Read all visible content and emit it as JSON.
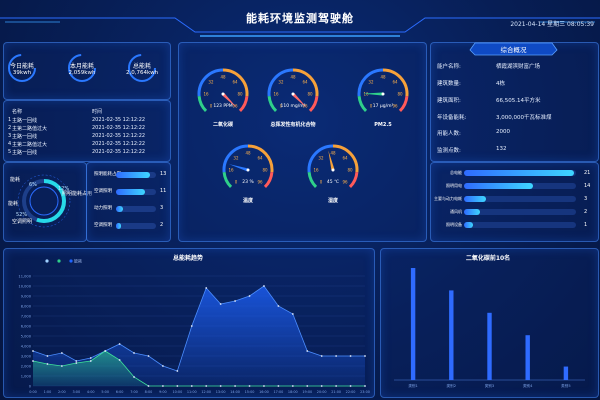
{
  "header": {
    "title": "能耗环境监测驾驶舱",
    "datetime": "2021-04-14 星期三 08:05:39"
  },
  "kpis": [
    {
      "label": "今日能耗",
      "value": "39kwh"
    },
    {
      "label": "本月能耗",
      "value": "2,059kwh"
    },
    {
      "label": "总能耗",
      "value": "2,0,764kwh"
    }
  ],
  "alarm_table": {
    "headers": [
      "名称",
      "时间"
    ],
    "rows": [
      {
        "name": "主路一回线",
        "time": "2021-02-35 12:12:22"
      },
      {
        "name": "主第二路值过大",
        "time": "2021-02-35 12:12:22"
      },
      {
        "name": "主路一回线",
        "time": "2021-02-35 12:12:22"
      },
      {
        "name": "主第二路值过大",
        "time": "2021-02-35 12:12:22"
      },
      {
        "name": "主路一回线",
        "time": "2021-02-35 12:12:22"
      }
    ]
  },
  "donut": {
    "labels": [
      "能耗",
      "照明能耗占用",
      "空调照明",
      "动力照明",
      "能耗"
    ],
    "percents": [
      "6%",
      "12%",
      "52%"
    ]
  },
  "bar_list": {
    "items": [
      {
        "label": "照明能耗占用",
        "value": 13,
        "frac": 0.85
      },
      {
        "label": "空调照明",
        "value": 11,
        "frac": 0.72
      },
      {
        "label": "动力照明",
        "value": 3,
        "frac": 0.18
      },
      {
        "label": "空调照明",
        "value": 2,
        "frac": 0.12
      }
    ]
  },
  "gauges": [
    {
      "label": "二氧化碳",
      "value_text": "123 PPM",
      "value": 123,
      "max": 100,
      "ticks": [
        "0",
        "16",
        "32",
        "48",
        "64",
        "80",
        "96"
      ]
    },
    {
      "label": "总挥发性有机化合物",
      "value_text": "110 mg/m³",
      "value": 110,
      "max": 100,
      "ticks": [
        "0",
        "16",
        "32",
        "48",
        "64",
        "80",
        "96"
      ]
    },
    {
      "label": "PM2.5",
      "value_text": "17 μg/m³",
      "value": 17,
      "max": 100,
      "ticks": [
        "0",
        "16",
        "32",
        "48",
        "64",
        "80",
        "96"
      ]
    },
    {
      "label": "温度",
      "value_text": "23 %",
      "value": 23,
      "max": 100,
      "ticks": [
        "0",
        "16",
        "32",
        "48",
        "64",
        "80",
        "96"
      ]
    },
    {
      "label": "湿度",
      "value_text": "45 ℃",
      "value": 45,
      "max": 100,
      "ticks": [
        "0",
        "16",
        "32",
        "48",
        "64",
        "80",
        "96"
      ]
    }
  ],
  "overview": {
    "title": "综合概况",
    "rows": [
      {
        "key": "能户名称:",
        "value": "栖霞湖滨财富广场"
      },
      {
        "key": "建筑数量:",
        "value": "4栋"
      },
      {
        "key": "建筑面积:",
        "value": "66,505.14平方米"
      },
      {
        "key": "年设备能耗:",
        "value": "3,000,000千瓦标准煤"
      },
      {
        "key": "用能人数:",
        "value": "2000"
      },
      {
        "key": "监测点数:",
        "value": "132"
      }
    ]
  },
  "hbars": {
    "items": [
      {
        "label": "总电能",
        "value": 21,
        "frac": 0.98
      },
      {
        "label": "照明用电",
        "value": 14,
        "frac": 0.62
      },
      {
        "label": "主要与动力电耗",
        "value": 3,
        "frac": 0.2
      },
      {
        "label": "通风机",
        "value": 2,
        "frac": 0.14
      },
      {
        "label": "照明设备",
        "value": 1,
        "frac": 0.08
      }
    ]
  },
  "chart_data": [
    {
      "type": "area",
      "title": "总能耗趋势",
      "legend": [
        "",
        "",
        "能耗"
      ],
      "x": [
        "0:00",
        "1:00",
        "2:00",
        "3:00",
        "4:00",
        "5:00",
        "6:00",
        "7:00",
        "8:00",
        "9:00",
        "10:00",
        "11:00",
        "12:00",
        "13:00",
        "14:00",
        "15:00",
        "16:00",
        "17:00",
        "18:00",
        "19:00",
        "20:00",
        "21:00",
        "22:00",
        "23:00"
      ],
      "y_ticks": [
        "11,000",
        "10,000",
        "9,000",
        "8,000",
        "7,000",
        "6,000",
        "5,000",
        "4,000",
        "3,000",
        "2,000",
        "1,000",
        "0"
      ],
      "ylim": [
        0,
        11000
      ],
      "series": [
        {
          "name": "",
          "color": "#1e63ff",
          "values": [
            3500,
            3000,
            3300,
            2500,
            2800,
            3500,
            4200,
            3300,
            3000,
            2000,
            1500,
            6000,
            9800,
            8200,
            8500,
            9000,
            10000,
            8000,
            7200,
            3500,
            3000,
            3000,
            3000,
            3000
          ]
        },
        {
          "name": "",
          "color": "#2fd08a",
          "values": [
            2500,
            2200,
            2000,
            2300,
            2500,
            3500,
            2600,
            900,
            0,
            0,
            0,
            0,
            0,
            0,
            0,
            0,
            0,
            0,
            0,
            0,
            0,
            0,
            0,
            0
          ]
        }
      ]
    },
    {
      "type": "bar",
      "title": "二氧化碳前10名",
      "categories": [
        "类别1",
        "类别2",
        "类别3",
        "类别4",
        "类别5"
      ],
      "values": [
        100,
        80,
        60,
        40,
        12
      ],
      "ylim": [
        0,
        100
      ]
    }
  ]
}
